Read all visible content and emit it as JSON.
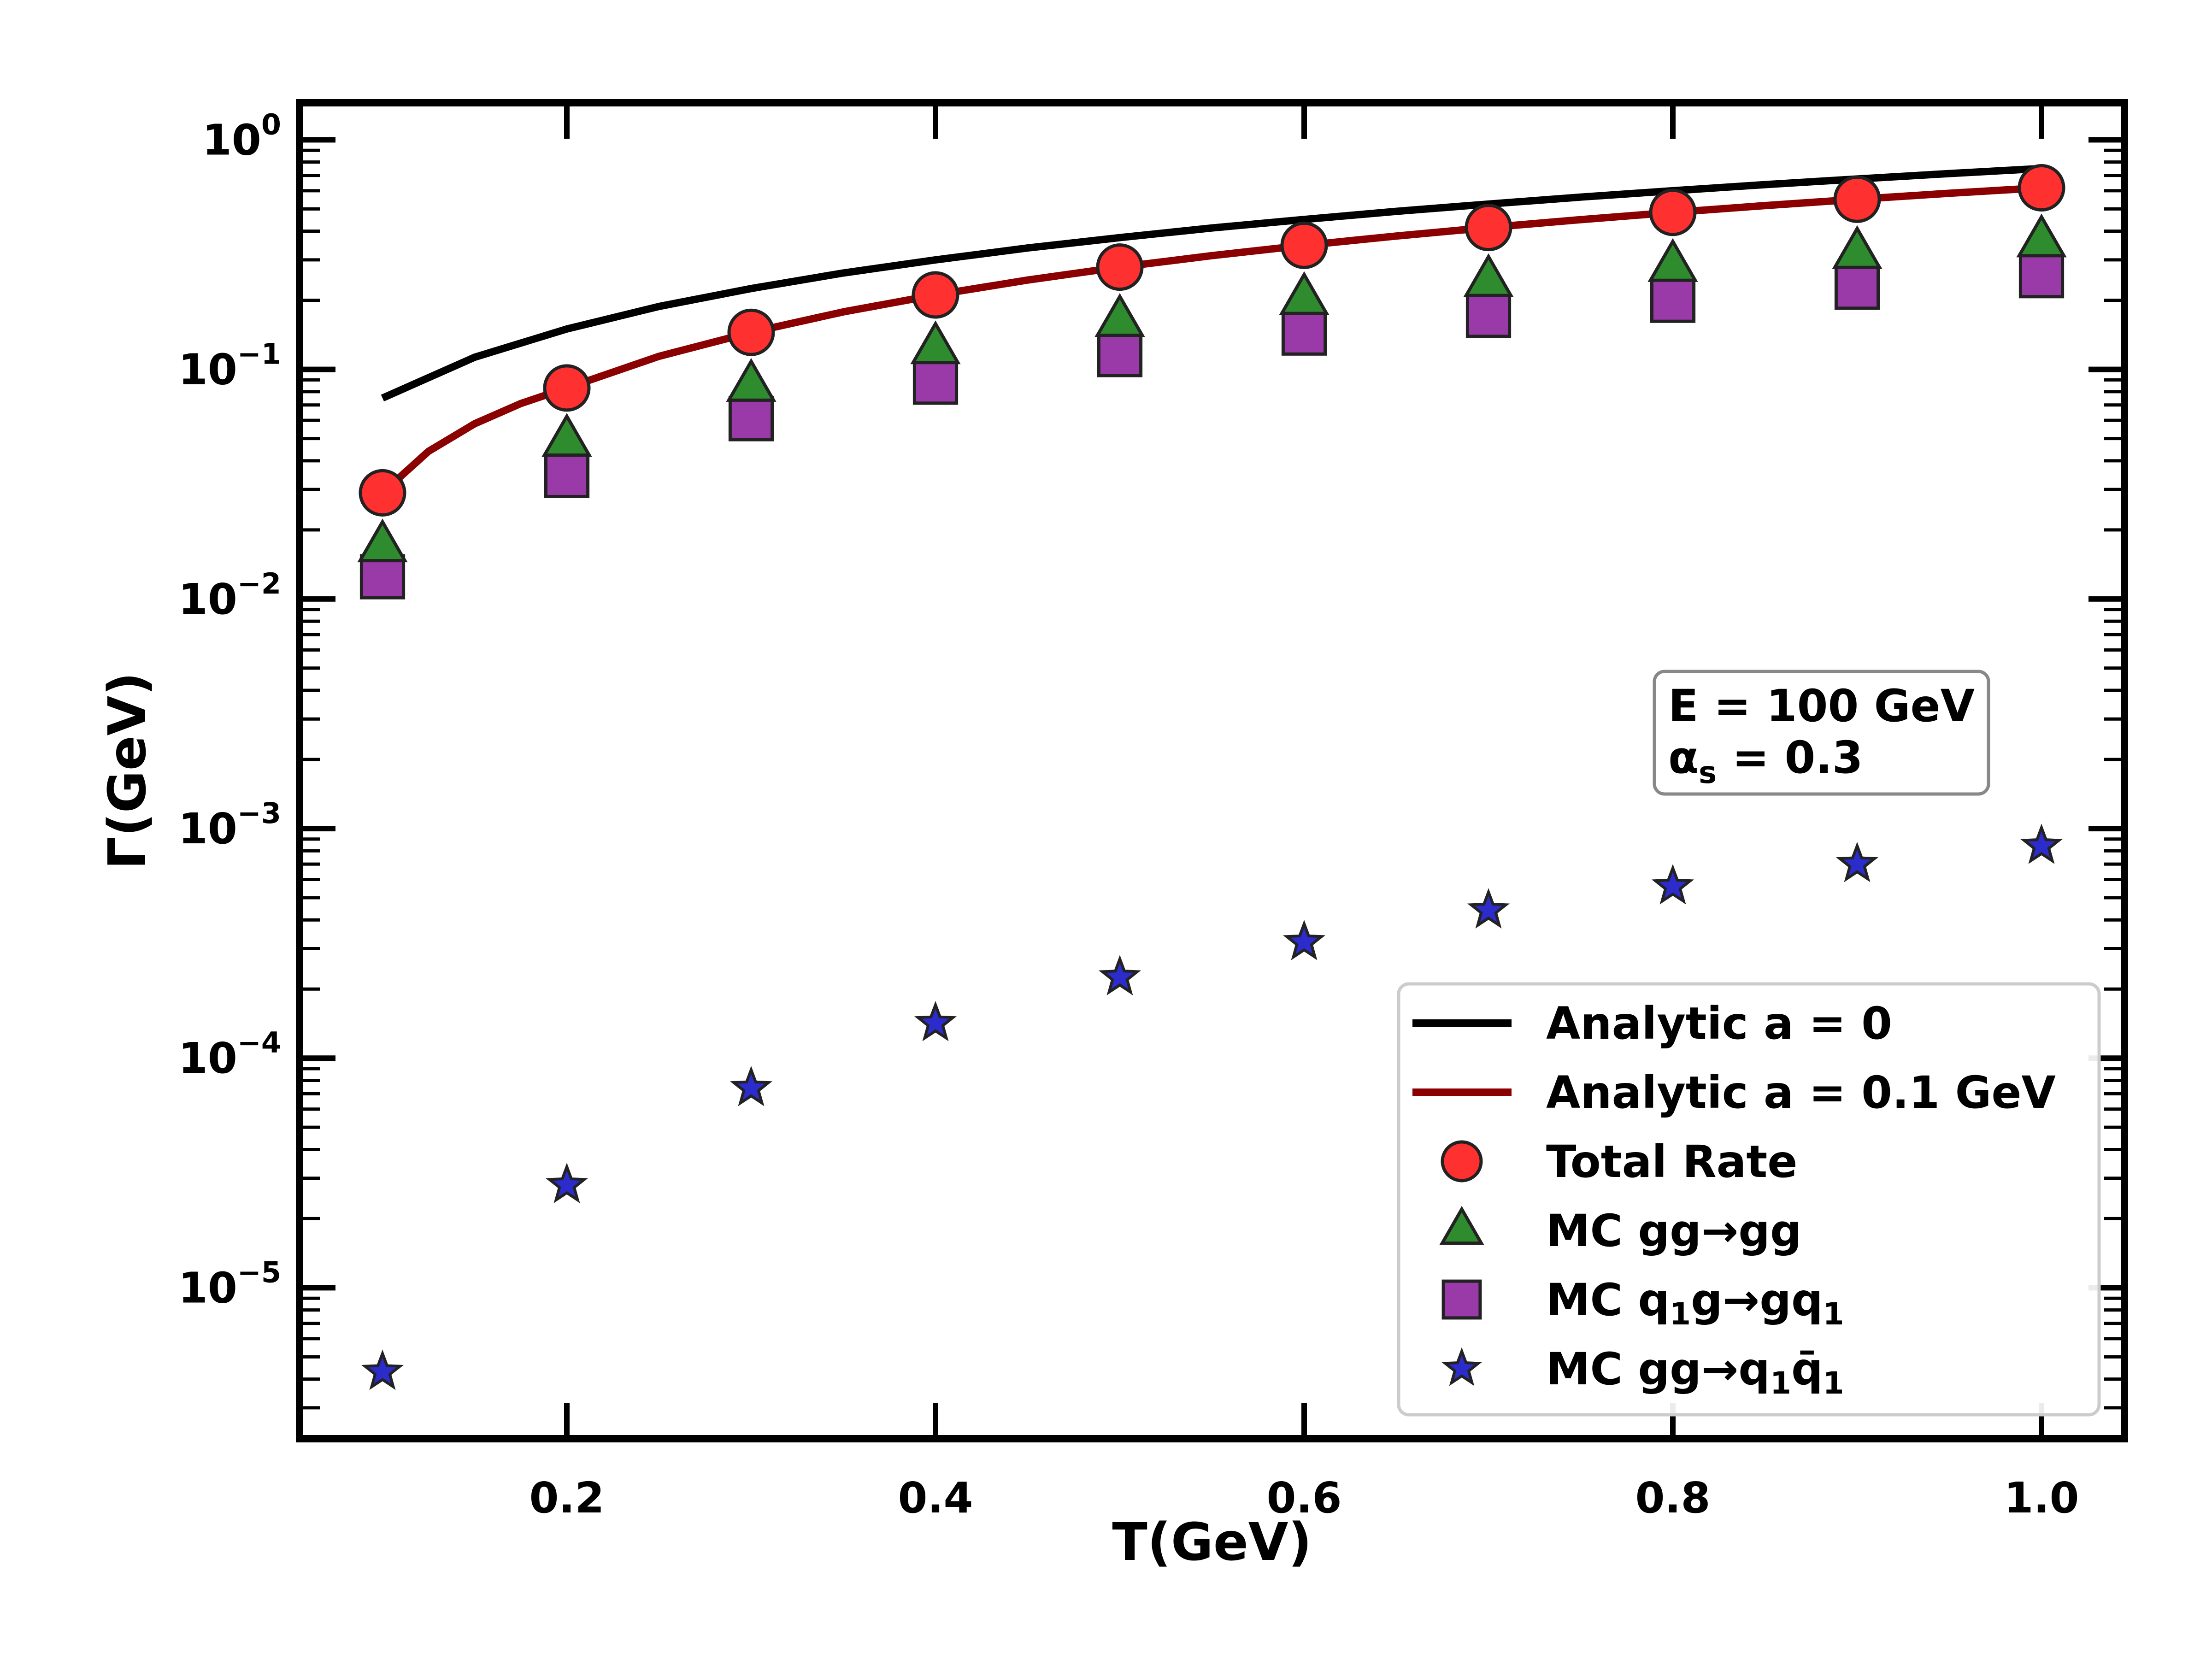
{
  "chart_data": {
    "type": "scatter",
    "xlabel": "T(GeV)",
    "ylabel": "Γ(GeV)",
    "xscale": "linear",
    "yscale": "log",
    "xlim": [
      0.055,
      1.045
    ],
    "ylim": [
      2.2e-06,
      1.45
    ],
    "xticks": [
      0.2,
      0.4,
      0.6,
      0.8,
      1.0
    ],
    "xtick_labels": [
      "0.2",
      "0.4",
      "0.6",
      "0.8",
      "1.0"
    ],
    "yticks": [
      1e-05,
      0.0001,
      0.001,
      0.01,
      0.1,
      1
    ],
    "ytick_labels": [
      {
        "base": "10",
        "exp": "−5"
      },
      {
        "base": "10",
        "exp": "−4"
      },
      {
        "base": "10",
        "exp": "−3"
      },
      {
        "base": "10",
        "exp": "−2"
      },
      {
        "base": "10",
        "exp": "−1"
      },
      {
        "base": "10",
        "exp": "0"
      }
    ],
    "legend_position": "lower-right",
    "series": [
      {
        "name": "Analytic a = 0",
        "kind": "line",
        "color": "#000000",
        "x": [
          0.1,
          0.15,
          0.2,
          0.25,
          0.3,
          0.35,
          0.4,
          0.45,
          0.5,
          0.55,
          0.6,
          0.65,
          0.7,
          0.75,
          0.8,
          0.85,
          0.9,
          0.95,
          1.0
        ],
        "y": [
          0.075,
          0.113,
          0.15,
          0.188,
          0.225,
          0.263,
          0.3,
          0.338,
          0.375,
          0.413,
          0.45,
          0.488,
          0.525,
          0.563,
          0.6,
          0.638,
          0.675,
          0.713,
          0.75
        ]
      },
      {
        "name": "Analytic a = 0.1 GeV",
        "kind": "line",
        "color": "#8b0000",
        "x": [
          0.1,
          0.125,
          0.15,
          0.175,
          0.2,
          0.25,
          0.3,
          0.35,
          0.4,
          0.45,
          0.5,
          0.55,
          0.6,
          0.65,
          0.7,
          0.75,
          0.8,
          0.85,
          0.9,
          0.95,
          1.0
        ],
        "y": [
          0.029,
          0.044,
          0.058,
          0.071,
          0.083,
          0.114,
          0.145,
          0.178,
          0.211,
          0.245,
          0.279,
          0.313,
          0.347,
          0.381,
          0.415,
          0.449,
          0.483,
          0.517,
          0.551,
          0.585,
          0.618
        ]
      },
      {
        "name": "Total Rate",
        "kind": "scatter",
        "marker": "circle",
        "color": "#ff3030",
        "x": [
          0.1,
          0.2,
          0.3,
          0.4,
          0.5,
          0.6,
          0.7,
          0.8,
          0.9,
          1.0
        ],
        "y": [
          0.029,
          0.083,
          0.145,
          0.211,
          0.279,
          0.347,
          0.415,
          0.483,
          0.551,
          0.618
        ]
      },
      {
        "name": "MC gg→gg",
        "kind": "scatter",
        "marker": "triangle",
        "color": "#2e8b2e",
        "x": [
          0.1,
          0.2,
          0.3,
          0.4,
          0.5,
          0.6,
          0.7,
          0.8,
          0.9,
          1.0
        ],
        "y": [
          0.017,
          0.049,
          0.085,
          0.124,
          0.163,
          0.203,
          0.243,
          0.283,
          0.322,
          0.362
        ]
      },
      {
        "name": "MC q₁g→gq₁",
        "kind": "scatter",
        "marker": "square",
        "color": "#9a3aa8",
        "x": [
          0.1,
          0.2,
          0.3,
          0.4,
          0.5,
          0.6,
          0.7,
          0.8,
          0.9,
          1.0
        ],
        "y": [
          0.0125,
          0.0345,
          0.061,
          0.088,
          0.116,
          0.144,
          0.172,
          0.2,
          0.228,
          0.256
        ]
      },
      {
        "name": "MC gg→q₁q̄₁",
        "kind": "scatter",
        "marker": "star",
        "color": "#2c2ccc",
        "x": [
          0.1,
          0.2,
          0.3,
          0.4,
          0.5,
          0.6,
          0.7,
          0.8,
          0.9,
          1.0
        ],
        "y": [
          4.3e-06,
          2.8e-05,
          7.4e-05,
          0.000142,
          0.000225,
          0.00032,
          0.00044,
          0.00056,
          0.0007,
          0.00084
        ]
      }
    ],
    "legend": [
      {
        "parts": [
          {
            "t": "Analytic a = 0"
          }
        ],
        "marker": "line",
        "color": "#000000"
      },
      {
        "parts": [
          {
            "t": "Analytic a = 0.1 GeV"
          }
        ],
        "marker": "line",
        "color": "#8b0000"
      },
      {
        "parts": [
          {
            "t": "Total Rate"
          }
        ],
        "marker": "circle",
        "color": "#ff3030"
      },
      {
        "parts": [
          {
            "t": "MC gg→gg"
          }
        ],
        "marker": "triangle",
        "color": "#2e8b2e"
      },
      {
        "parts": [
          {
            "t": "MC q"
          },
          {
            "t": "1",
            "sub": true
          },
          {
            "t": "g→gq"
          },
          {
            "t": "1",
            "sub": true
          }
        ],
        "marker": "square",
        "color": "#9a3aa8"
      },
      {
        "parts": [
          {
            "t": "MC gg→q"
          },
          {
            "t": "1",
            "sub": true
          },
          {
            "t": "q̄"
          },
          {
            "t": "1",
            "sub": true
          }
        ],
        "marker": "star",
        "color": "#2c2ccc"
      }
    ],
    "annotation": {
      "line1": "E = 100 GeV",
      "line2_parts": [
        {
          "t": "α"
        },
        {
          "t": "s",
          "sub": true
        },
        {
          "t": " = 0.3"
        }
      ]
    }
  }
}
